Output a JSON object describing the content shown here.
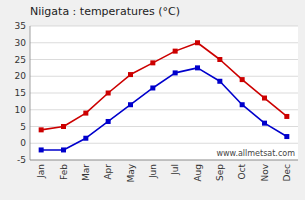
{
  "chart_data": {
    "type": "line",
    "title": "Niigata : temperatures (°C)",
    "categories": [
      "Jan",
      "Feb",
      "Mar",
      "Apr",
      "May",
      "Jun",
      "Jul",
      "Aug",
      "Sep",
      "Oct",
      "Nov",
      "Dec"
    ],
    "series": [
      {
        "color": "#cc0000",
        "marker": "square",
        "values": [
          4,
          5,
          9,
          15,
          20.5,
          24,
          27.5,
          30,
          25,
          19,
          13.5,
          8
        ]
      },
      {
        "color": "#0000cc",
        "marker": "square",
        "values": [
          -2,
          -2,
          1.5,
          6.5,
          11.5,
          16.5,
          21,
          22.5,
          18.5,
          11.5,
          6,
          2
        ]
      }
    ],
    "ylim": [
      -5,
      35
    ],
    "yticks": [
      -5,
      0,
      5,
      10,
      15,
      20,
      25,
      30,
      35
    ],
    "grid": true,
    "annotations": [
      "www.allmetsat.com"
    ]
  }
}
